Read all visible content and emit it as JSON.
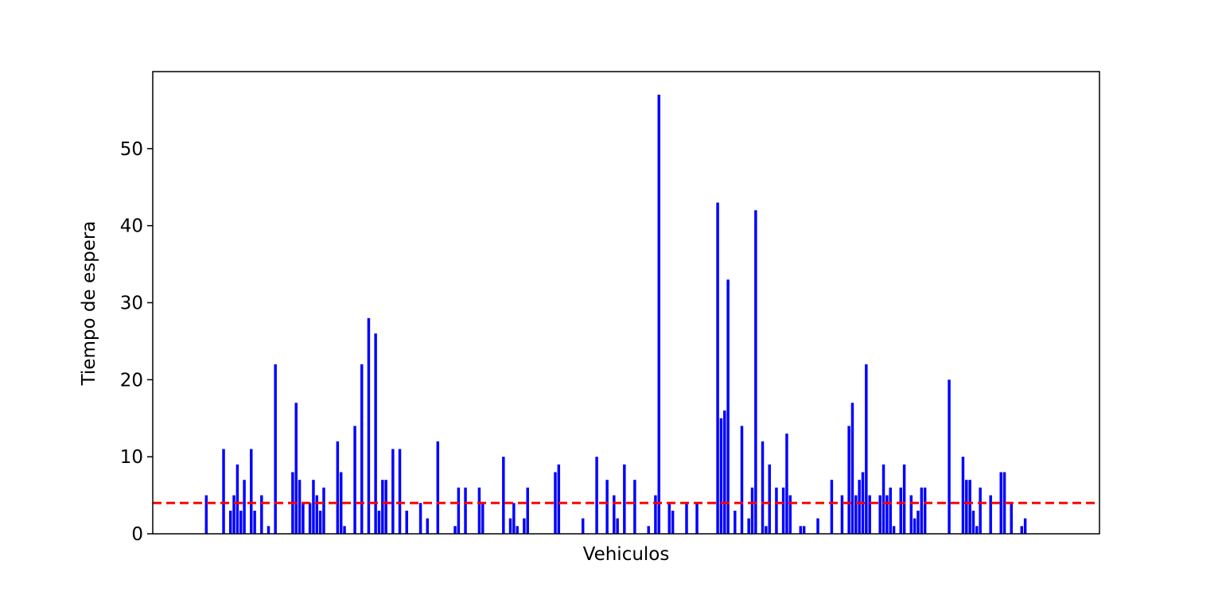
{
  "chart_data": {
    "type": "bar",
    "title": "",
    "xlabel": "Vehiculos",
    "ylabel": "Tiempo de espera",
    "ylim": [
      0,
      60
    ],
    "xlim": [
      -16.5,
      257.5
    ],
    "yticks": [
      0,
      10,
      20,
      30,
      40,
      50
    ],
    "grid": false,
    "x_ticks_visible": false,
    "bar_color": "#0000ff",
    "reference_line": {
      "y": 4,
      "color": "#ff0000",
      "style": "dashed"
    },
    "points": [
      [
        -1,
        5
      ],
      [
        4,
        11
      ],
      [
        6,
        3
      ],
      [
        7,
        5
      ],
      [
        8,
        9
      ],
      [
        9,
        3
      ],
      [
        10,
        7
      ],
      [
        12,
        11
      ],
      [
        13,
        3
      ],
      [
        15,
        5
      ],
      [
        17,
        1
      ],
      [
        19,
        22
      ],
      [
        24,
        8
      ],
      [
        25,
        17
      ],
      [
        26,
        7
      ],
      [
        27,
        4
      ],
      [
        29,
        4
      ],
      [
        30,
        7
      ],
      [
        31,
        5
      ],
      [
        32,
        3
      ],
      [
        33,
        6
      ],
      [
        37,
        12
      ],
      [
        38,
        8
      ],
      [
        39,
        1
      ],
      [
        42,
        14
      ],
      [
        44,
        22
      ],
      [
        46,
        28
      ],
      [
        48,
        26
      ],
      [
        49,
        3
      ],
      [
        50,
        7
      ],
      [
        51,
        7
      ],
      [
        53,
        11
      ],
      [
        55,
        11
      ],
      [
        57,
        3
      ],
      [
        61,
        4
      ],
      [
        63,
        2
      ],
      [
        66,
        12
      ],
      [
        71,
        1
      ],
      [
        72,
        6
      ],
      [
        74,
        6
      ],
      [
        78,
        6
      ],
      [
        79,
        4
      ],
      [
        85,
        10
      ],
      [
        87,
        2
      ],
      [
        88,
        4
      ],
      [
        89,
        1
      ],
      [
        91,
        2
      ],
      [
        92,
        6
      ],
      [
        100,
        8
      ],
      [
        101,
        9
      ],
      [
        108,
        2
      ],
      [
        112,
        10
      ],
      [
        115,
        7
      ],
      [
        117,
        5
      ],
      [
        118,
        2
      ],
      [
        120,
        9
      ],
      [
        123,
        7
      ],
      [
        127,
        1
      ],
      [
        129,
        5
      ],
      [
        130,
        57
      ],
      [
        133,
        4
      ],
      [
        134,
        3
      ],
      [
        138,
        4
      ],
      [
        141,
        4
      ],
      [
        147,
        43
      ],
      [
        148,
        15
      ],
      [
        149,
        16
      ],
      [
        150,
        33
      ],
      [
        152,
        3
      ],
      [
        154,
        14
      ],
      [
        156,
        2
      ],
      [
        157,
        6
      ],
      [
        158,
        42
      ],
      [
        160,
        12
      ],
      [
        161,
        1
      ],
      [
        162,
        9
      ],
      [
        164,
        6
      ],
      [
        166,
        6
      ],
      [
        167,
        13
      ],
      [
        168,
        5
      ],
      [
        171,
        1
      ],
      [
        172,
        1
      ],
      [
        176,
        2
      ],
      [
        180,
        7
      ],
      [
        183,
        5
      ],
      [
        185,
        14
      ],
      [
        186,
        17
      ],
      [
        187,
        5
      ],
      [
        188,
        7
      ],
      [
        189,
        8
      ],
      [
        190,
        22
      ],
      [
        191,
        5
      ],
      [
        194,
        5
      ],
      [
        195,
        9
      ],
      [
        196,
        5
      ],
      [
        197,
        6
      ],
      [
        198,
        1
      ],
      [
        200,
        6
      ],
      [
        201,
        9
      ],
      [
        203,
        5
      ],
      [
        204,
        2
      ],
      [
        205,
        3
      ],
      [
        206,
        6
      ],
      [
        207,
        6
      ],
      [
        214,
        20
      ],
      [
        218,
        10
      ],
      [
        219,
        7
      ],
      [
        220,
        7
      ],
      [
        221,
        3
      ],
      [
        222,
        1
      ],
      [
        223,
        6
      ],
      [
        226,
        5
      ],
      [
        229,
        8
      ],
      [
        230,
        8
      ],
      [
        232,
        4
      ],
      [
        235,
        1
      ],
      [
        236,
        2
      ]
    ]
  }
}
